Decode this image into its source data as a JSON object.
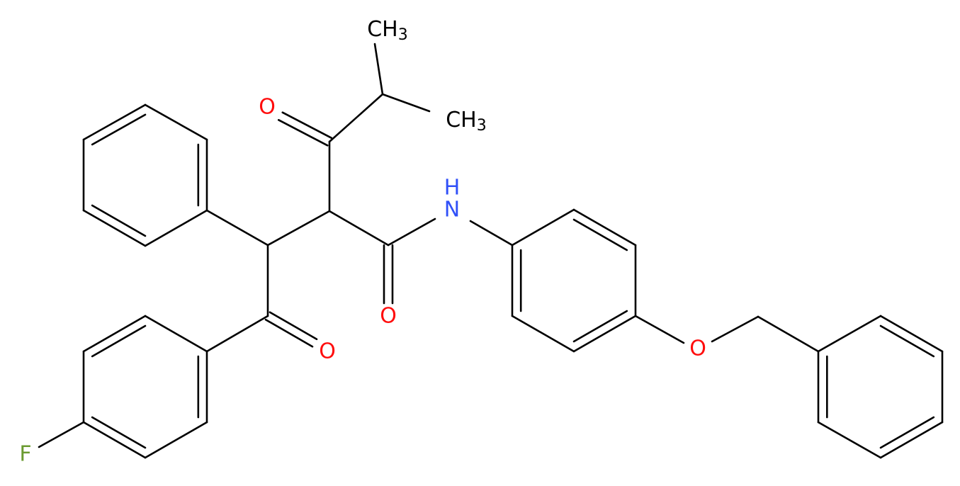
{
  "atoms": [
    {
      "label": "CH",
      "sub": "3"
    },
    {
      "label": "CH",
      "sub": "3"
    },
    {
      "label": "O"
    },
    {
      "label": "N",
      "hydrogen": "H"
    },
    {
      "label": "O"
    },
    {
      "label": "O"
    },
    {
      "label": "O"
    },
    {
      "label": "F"
    }
  ]
}
